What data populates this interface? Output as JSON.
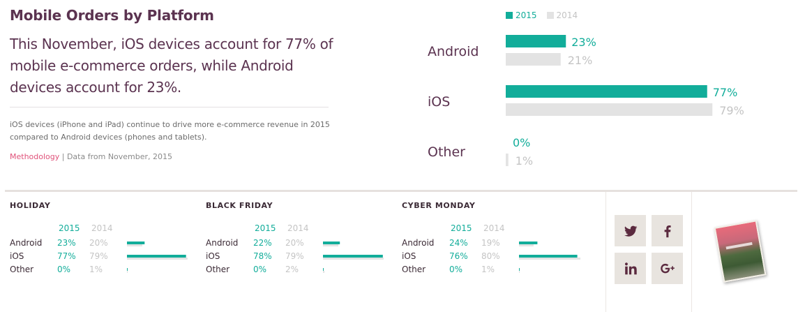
{
  "header": {
    "title": "Mobile Orders by Platform",
    "headline": "This November, iOS devices account for 77% of mobile e-commerce orders, while Android devices account for 23%.",
    "description": "iOS devices (iPhone and iPad) continue to drive more e-commerce revenue in 2015 compared to Android devices (phones and tablets).",
    "methodology_link": "Methodology",
    "source_note": " | Data from November, 2015"
  },
  "colors": {
    "y2015": "#12ad9a",
    "y2014": "#e3e3e3",
    "text": "#5b3350"
  },
  "legend": {
    "y2015": "2015",
    "y2014": "2014"
  },
  "chart_data": [
    {
      "type": "bar",
      "categories": [
        "Android",
        "iOS",
        "Other"
      ],
      "series": [
        {
          "name": "2015",
          "values": [
            23,
            77,
            0
          ],
          "labels": [
            "23%",
            "77%",
            "0%"
          ]
        },
        {
          "name": "2014",
          "values": [
            21,
            79,
            1
          ],
          "labels": [
            "21%",
            "79%",
            "1%"
          ]
        }
      ]
    },
    {
      "type": "bar",
      "title": "HOLIDAY",
      "categories": [
        "Android",
        "iOS",
        "Other"
      ],
      "series": [
        {
          "name": "2015",
          "values": [
            23,
            77,
            0
          ],
          "labels": [
            "23%",
            "77%",
            "0%"
          ]
        },
        {
          "name": "2014",
          "values": [
            20,
            79,
            1
          ],
          "labels": [
            "20%",
            "79%",
            "1%"
          ]
        }
      ]
    },
    {
      "type": "bar",
      "title": "BLACK FRIDAY",
      "categories": [
        "Android",
        "iOS",
        "Other"
      ],
      "series": [
        {
          "name": "2015",
          "values": [
            22,
            78,
            0
          ],
          "labels": [
            "22%",
            "78%",
            "0%"
          ]
        },
        {
          "name": "2014",
          "values": [
            20,
            79,
            2
          ],
          "labels": [
            "20%",
            "79%",
            "2%"
          ]
        }
      ]
    },
    {
      "type": "bar",
      "title": "CYBER MONDAY",
      "categories": [
        "Android",
        "iOS",
        "Other"
      ],
      "series": [
        {
          "name": "2015",
          "values": [
            24,
            76,
            0
          ],
          "labels": [
            "24%",
            "76%",
            "0%"
          ]
        },
        {
          "name": "2014",
          "values": [
            19,
            80,
            1
          ],
          "labels": [
            "19%",
            "80%",
            "1%"
          ]
        }
      ]
    }
  ],
  "social": [
    {
      "name": "twitter",
      "icon": "twitter-icon"
    },
    {
      "name": "facebook",
      "icon": "facebook-icon"
    },
    {
      "name": "linkedin",
      "icon": "linkedin-icon"
    },
    {
      "name": "google-plus",
      "icon": "google-plus-icon"
    }
  ]
}
